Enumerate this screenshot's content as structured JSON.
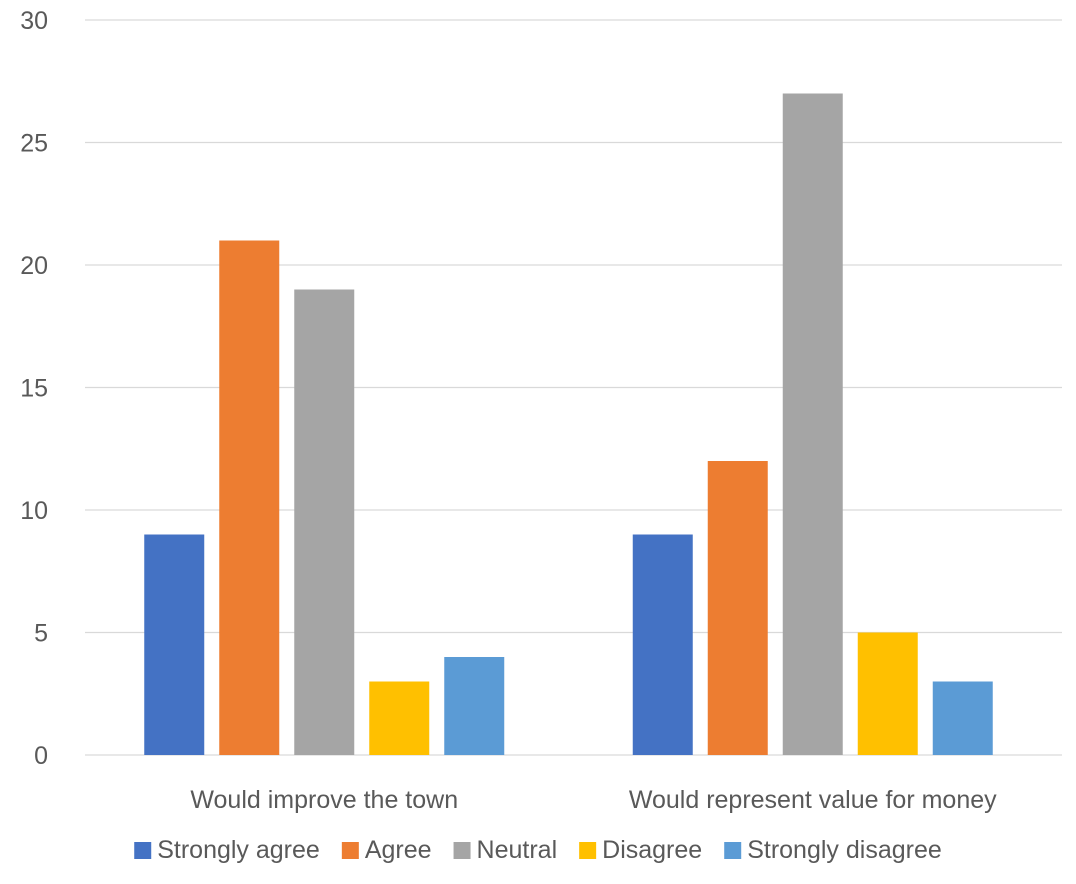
{
  "chart_data": {
    "type": "bar",
    "title": "",
    "xlabel": "",
    "ylabel": "",
    "categories": [
      "Would improve the town",
      "Would represent value for money"
    ],
    "series": [
      {
        "name": "Strongly agree",
        "color": "#4472C4",
        "values": [
          9,
          9
        ]
      },
      {
        "name": "Agree",
        "color": "#ED7D31",
        "values": [
          21,
          12
        ]
      },
      {
        "name": "Neutral",
        "color": "#A5A5A5",
        "values": [
          19,
          27
        ]
      },
      {
        "name": "Disagree",
        "color": "#FFC000",
        "values": [
          3,
          5
        ]
      },
      {
        "name": "Strongly disagree",
        "color": "#5B9BD5",
        "values": [
          4,
          3
        ]
      }
    ],
    "ylim": [
      0,
      30
    ],
    "yticks": [
      0,
      5,
      10,
      15,
      20,
      25,
      30
    ],
    "grid": true,
    "legend_position": "bottom"
  }
}
